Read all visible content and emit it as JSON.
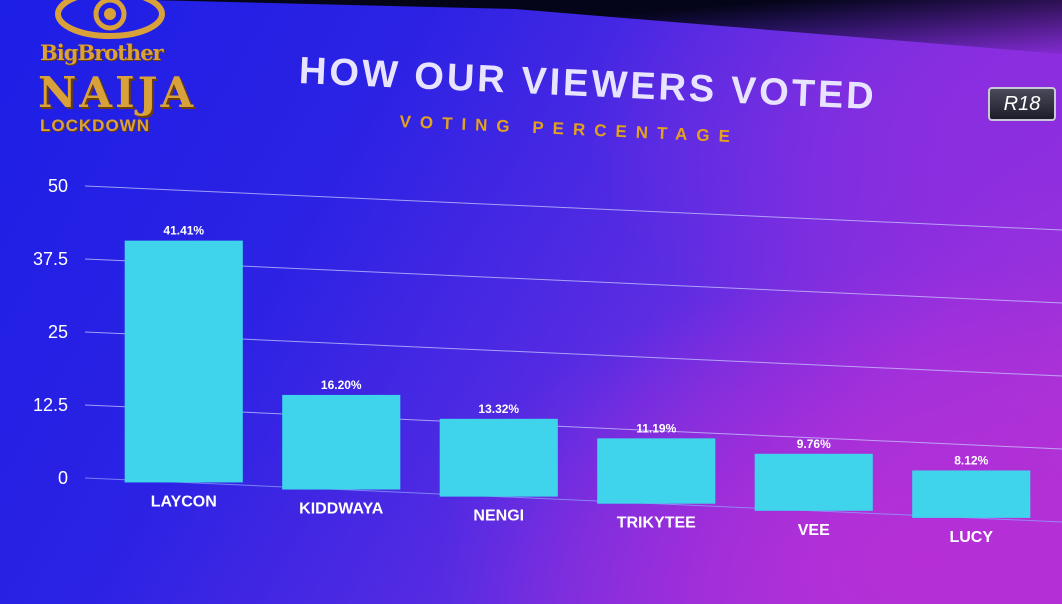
{
  "logo": {
    "line1": "BigBrother",
    "line2": "NAIJA",
    "line3": "LOCKDOWN"
  },
  "header": {
    "title": "HOW OUR VIEWERS VOTED",
    "subtitle": "VOTING PERCENTAGE",
    "rating": "R18"
  },
  "colors": {
    "bar": "#3fd3ec",
    "title": "#e8e4ff",
    "subtitle": "#e3a21e",
    "logo": "#d8a13a"
  },
  "chart_data": {
    "type": "bar",
    "title": "HOW OUR VIEWERS VOTED",
    "subtitle": "VOTING PERCENTAGE",
    "xlabel": "",
    "ylabel": "",
    "categories": [
      "LAYCON",
      "KIDDWAYA",
      "NENGI",
      "TRIKYTEE",
      "VEE",
      "LUCY"
    ],
    "values": [
      41.41,
      16.2,
      13.32,
      11.19,
      9.76,
      8.12
    ],
    "data_labels": [
      "41.41%",
      "16.20%",
      "13.32%",
      "11.19%",
      "9.76%",
      "8.12%"
    ],
    "yticks": [
      0,
      12.5,
      25,
      37.5,
      50
    ],
    "ytick_labels": [
      "0",
      "12.5",
      "25",
      "37.5",
      "50"
    ],
    "ylim": [
      0,
      50
    ],
    "grid": true
  }
}
